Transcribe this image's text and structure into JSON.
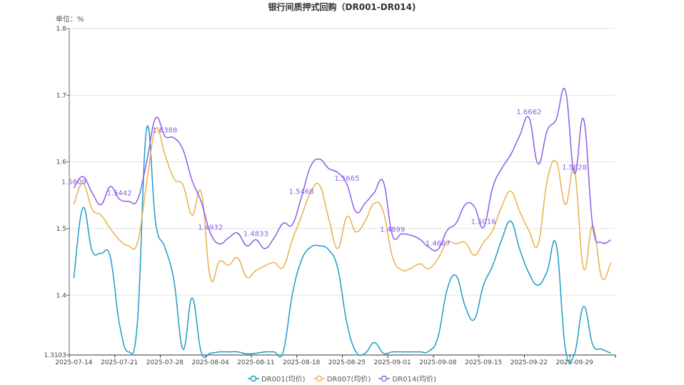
{
  "chart_data": {
    "type": "line",
    "title": "银行间质押式回购（DR001-DR014)",
    "unit_label": "单位：%",
    "xlabel": "",
    "ylabel": "",
    "ylim": [
      1.3103,
      1.8
    ],
    "yticks": [
      1.3103,
      1.4,
      1.5,
      1.6,
      1.7,
      1.8
    ],
    "grid": true,
    "legend_position": "bottom",
    "smooth": true,
    "categories": [
      "2025-07-14",
      "2025-07-15",
      "2025-07-16",
      "2025-07-17",
      "2025-07-18",
      "2025-07-21",
      "2025-07-22",
      "2025-07-23",
      "2025-07-24",
      "2025-07-25",
      "2025-07-28",
      "2025-07-29",
      "2025-07-30",
      "2025-07-31",
      "2025-08-01",
      "2025-08-04",
      "2025-08-05",
      "2025-08-06",
      "2025-08-07",
      "2025-08-08",
      "2025-08-11",
      "2025-08-12",
      "2025-08-13",
      "2025-08-14",
      "2025-08-15",
      "2025-08-18",
      "2025-08-19",
      "2025-08-20",
      "2025-08-21",
      "2025-08-22",
      "2025-08-25",
      "2025-08-26",
      "2025-08-27",
      "2025-08-28",
      "2025-08-29",
      "2025-09-01",
      "2025-09-02",
      "2025-09-03",
      "2025-09-04",
      "2025-09-05",
      "2025-09-08",
      "2025-09-09",
      "2025-09-10",
      "2025-09-11",
      "2025-09-12",
      "2025-09-15",
      "2025-09-16",
      "2025-09-17",
      "2025-09-18",
      "2025-09-19",
      "2025-09-22",
      "2025-09-23",
      "2025-09-24",
      "2025-09-25",
      "2025-09-26",
      "2025-09-29",
      "2025-09-30",
      "2025-10-09",
      "2025-10-10",
      "2025-10-13"
    ],
    "tick_label_interval": 5,
    "series": [
      {
        "name": "DR001(均价)",
        "color": "#1f9bc8",
        "values": [
          1.4257,
          1.531,
          1.4667,
          1.463,
          1.458,
          1.358,
          1.315,
          1.361,
          1.65,
          1.508,
          1.472,
          1.422,
          1.319,
          1.396,
          1.314,
          1.313,
          1.315,
          1.315,
          1.315,
          1.312,
          1.313,
          1.315,
          1.315,
          1.315,
          1.401,
          1.452,
          1.472,
          1.474,
          1.468,
          1.44,
          1.358,
          1.315,
          1.313,
          1.329,
          1.313,
          1.315,
          1.315,
          1.315,
          1.315,
          1.316,
          1.337,
          1.408,
          1.429,
          1.383,
          1.364,
          1.415,
          1.444,
          1.483,
          1.511,
          1.468,
          1.433,
          1.415,
          1.436,
          1.476,
          1.319,
          1.312,
          1.383,
          1.326,
          1.319,
          1.313
        ]
      },
      {
        "name": "DR007(均价)",
        "color": "#e8b04b",
        "values": [
          1.536,
          1.568,
          1.529,
          1.52,
          1.5,
          1.483,
          1.474,
          1.479,
          1.568,
          1.65,
          1.611,
          1.575,
          1.565,
          1.52,
          1.554,
          1.426,
          1.451,
          1.445,
          1.456,
          1.427,
          1.437,
          1.444,
          1.449,
          1.442,
          1.483,
          1.518,
          1.554,
          1.565,
          1.515,
          1.47,
          1.518,
          1.495,
          1.511,
          1.538,
          1.525,
          1.458,
          1.438,
          1.44,
          1.447,
          1.44,
          1.455,
          1.479,
          1.477,
          1.479,
          1.46,
          1.479,
          1.497,
          1.533,
          1.556,
          1.525,
          1.497,
          1.476,
          1.572,
          1.6,
          1.536,
          1.586,
          1.44,
          1.504,
          1.426,
          1.449
        ]
      },
      {
        "name": "DR014(均价)",
        "color": "#8a5ee8",
        "values": [
          1.5609,
          1.578,
          1.554,
          1.536,
          1.563,
          1.5442,
          1.541,
          1.543,
          1.6,
          1.666,
          1.6388,
          1.636,
          1.618,
          1.572,
          1.54,
          1.4932,
          1.477,
          1.486,
          1.493,
          1.474,
          1.4833,
          1.47,
          1.486,
          1.508,
          1.506,
          1.5468,
          1.593,
          1.604,
          1.59,
          1.584,
          1.5665,
          1.525,
          1.538,
          1.554,
          1.57,
          1.4899,
          1.492,
          1.49,
          1.484,
          1.472,
          1.4687,
          1.497,
          1.508,
          1.536,
          1.533,
          1.5016,
          1.561,
          1.59,
          1.611,
          1.64,
          1.6662,
          1.597,
          1.647,
          1.664,
          1.707,
          1.5828,
          1.664,
          1.504,
          1.479,
          1.483
        ],
        "data_label_interval": 5
      }
    ]
  }
}
